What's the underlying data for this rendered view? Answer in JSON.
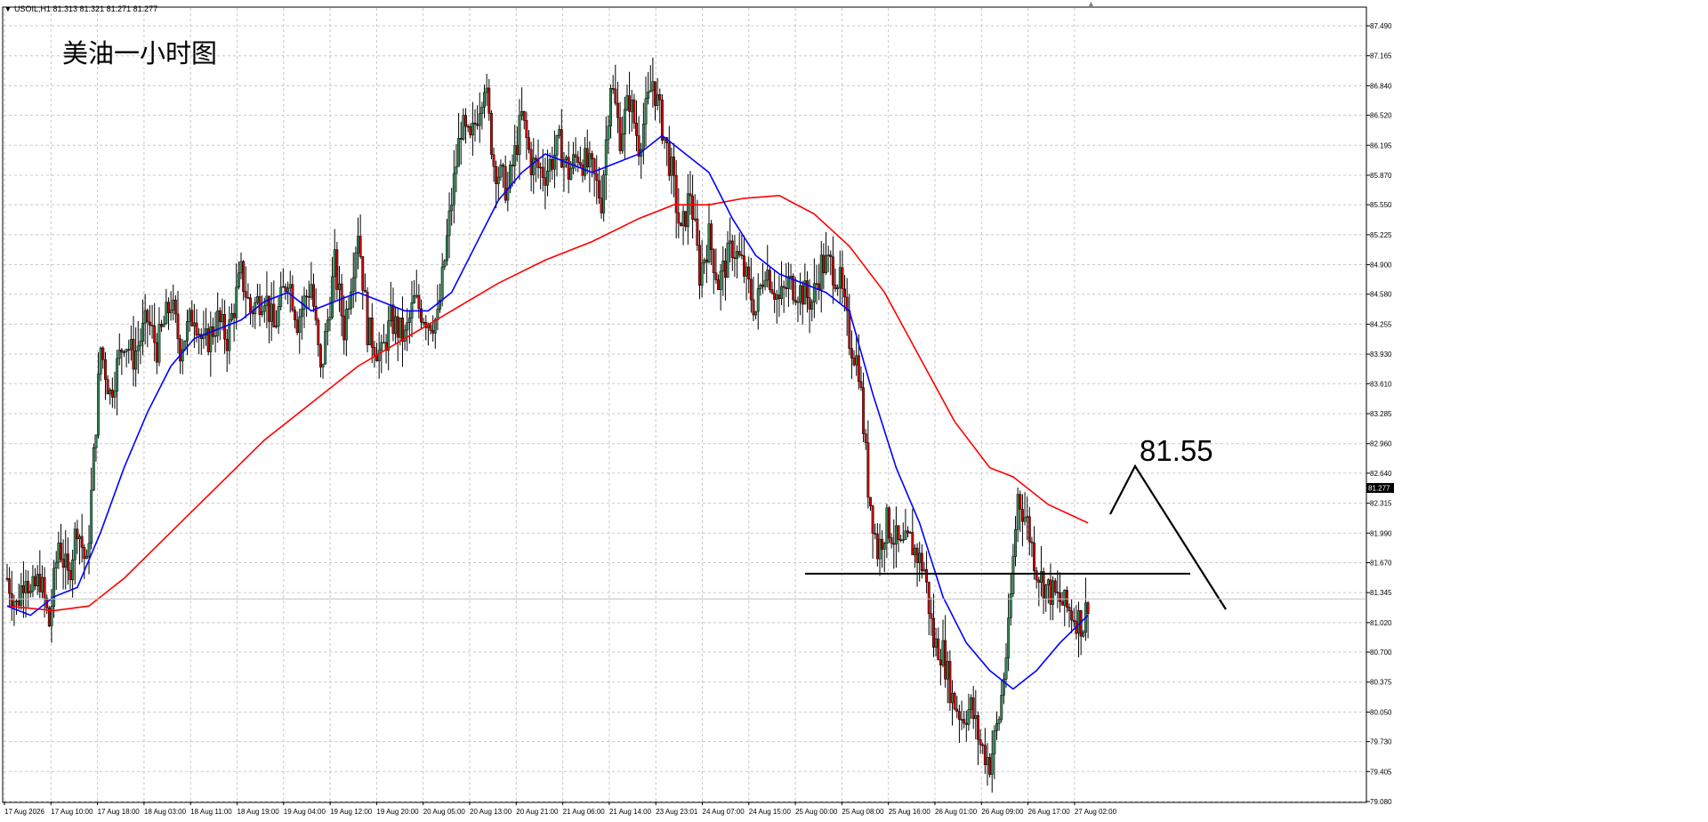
{
  "header": {
    "symbol_label": "USOIL,H1  81.313 81.321 81.271 81.277",
    "chart_title": "美油一小时图",
    "key_level_label": "81.55",
    "current_price_label": "81.277"
  },
  "colors": {
    "background": "#ffffff",
    "grid": "#c8c8c8",
    "bull_body": "#2e8b57",
    "bear_body": "#cc0000",
    "wick": "#000000",
    "ma_fast": "#0000ff",
    "ma_slow": "#ff0000",
    "annotation": "#000000"
  },
  "chart_data": {
    "type": "candlestick",
    "title": "美油一小时图",
    "symbol": "USOIL,H1",
    "ylim": [
      79.08,
      87.6
    ],
    "y_ticks": [
      "87.490",
      "87.165",
      "86.840",
      "86.520",
      "86.195",
      "85.870",
      "85.550",
      "85.225",
      "84.900",
      "84.580",
      "84.255",
      "83.930",
      "83.610",
      "83.285",
      "82.960",
      "82.640",
      "82.315",
      "81.990",
      "81.670",
      "81.345",
      "81.020",
      "80.700",
      "80.375",
      "80.050",
      "79.730",
      "79.405",
      "79.080"
    ],
    "x_ticks": [
      "17 Aug 2026",
      "17 Aug 10:00",
      "17 Aug 18:00",
      "18 Aug 03:00",
      "18 Aug 11:00",
      "18 Aug 19:00",
      "19 Aug 04:00",
      "19 Aug 12:00",
      "19 Aug 20:00",
      "20 Aug 05:00",
      "20 Aug 13:00",
      "20 Aug 21:00",
      "21 Aug 06:00",
      "21 Aug 14:00",
      "23 Aug 23:01",
      "24 Aug 07:00",
      "24 Aug 15:00",
      "25 Aug 00:00",
      "25 Aug 08:00",
      "25 Aug 16:00",
      "26 Aug 01:00",
      "26 Aug 09:00",
      "26 Aug 17:00",
      "27 Aug 02:00"
    ],
    "last_price": 81.277,
    "key_level": 81.55,
    "price_path": [
      [
        0,
        81.5
      ],
      [
        4,
        81.2
      ],
      [
        8,
        81.6
      ],
      [
        10,
        81.3
      ],
      [
        14,
        81.5
      ],
      [
        18,
        81.0
      ],
      [
        22,
        81.9
      ],
      [
        26,
        81.5
      ],
      [
        30,
        82.1
      ],
      [
        34,
        81.6
      ],
      [
        40,
        84.0
      ],
      [
        44,
        83.5
      ],
      [
        50,
        84.1
      ],
      [
        54,
        83.9
      ],
      [
        60,
        84.3
      ],
      [
        64,
        84.0
      ],
      [
        70,
        84.5
      ],
      [
        74,
        84.0
      ],
      [
        80,
        84.4
      ],
      [
        84,
        84.0
      ],
      [
        90,
        84.3
      ],
      [
        94,
        84.1
      ],
      [
        100,
        84.8
      ],
      [
        104,
        84.4
      ],
      [
        110,
        84.6
      ],
      [
        114,
        84.2
      ],
      [
        120,
        84.8
      ],
      [
        124,
        84.3
      ],
      [
        130,
        84.7
      ],
      [
        134,
        83.7
      ],
      [
        140,
        84.9
      ],
      [
        144,
        84.2
      ],
      [
        150,
        85.3
      ],
      [
        154,
        84.2
      ],
      [
        160,
        83.9
      ],
      [
        164,
        84.3
      ],
      [
        170,
        84.1
      ],
      [
        174,
        84.5
      ],
      [
        180,
        84.3
      ],
      [
        184,
        84.3
      ],
      [
        190,
        85.6
      ],
      [
        194,
        86.4
      ],
      [
        198,
        86.2
      ],
      [
        204,
        86.9
      ],
      [
        208,
        86.0
      ],
      [
        214,
        85.7
      ],
      [
        220,
        86.5
      ],
      [
        224,
        86.0
      ],
      [
        230,
        85.9
      ],
      [
        236,
        86.2
      ],
      [
        240,
        85.9
      ],
      [
        244,
        86.1
      ],
      [
        250,
        85.9
      ],
      [
        254,
        85.6
      ],
      [
        258,
        86.9
      ],
      [
        262,
        86.3
      ],
      [
        266,
        86.7
      ],
      [
        270,
        86.2
      ],
      [
        276,
        86.9
      ],
      [
        280,
        86.4
      ],
      [
        284,
        85.9
      ],
      [
        288,
        85.2
      ],
      [
        292,
        85.7
      ],
      [
        296,
        84.8
      ],
      [
        300,
        85.2
      ],
      [
        304,
        84.7
      ],
      [
        310,
        85.1
      ],
      [
        314,
        84.9
      ],
      [
        320,
        84.4
      ],
      [
        324,
        84.9
      ],
      [
        330,
        84.5
      ],
      [
        334,
        84.7
      ],
      [
        340,
        84.6
      ],
      [
        344,
        84.5
      ],
      [
        348,
        84.9
      ],
      [
        352,
        84.9
      ],
      [
        356,
        84.7
      ],
      [
        360,
        84.1
      ],
      [
        364,
        83.8
      ],
      [
        368,
        82.5
      ],
      [
        372,
        81.8
      ],
      [
        376,
        82.1
      ],
      [
        382,
        81.8
      ],
      [
        386,
        81.9
      ],
      [
        392,
        81.6
      ],
      [
        396,
        80.8
      ],
      [
        400,
        80.7
      ],
      [
        404,
        80.2
      ],
      [
        408,
        80.0
      ],
      [
        412,
        80.1
      ],
      [
        416,
        79.7
      ],
      [
        420,
        79.5
      ],
      [
        424,
        80.0
      ],
      [
        428,
        80.9
      ],
      [
        430,
        81.7
      ],
      [
        432,
        82.4
      ],
      [
        436,
        82.1
      ],
      [
        440,
        81.6
      ],
      [
        444,
        81.4
      ],
      [
        448,
        81.3
      ],
      [
        452,
        81.2
      ],
      [
        456,
        81.1
      ],
      [
        460,
        81.0
      ],
      [
        462,
        81.277
      ]
    ],
    "ma_fast": [
      [
        0,
        81.2
      ],
      [
        10,
        81.1
      ],
      [
        20,
        81.3
      ],
      [
        30,
        81.4
      ],
      [
        40,
        82.0
      ],
      [
        50,
        82.7
      ],
      [
        60,
        83.3
      ],
      [
        70,
        83.8
      ],
      [
        80,
        84.1
      ],
      [
        90,
        84.2
      ],
      [
        100,
        84.3
      ],
      [
        110,
        84.5
      ],
      [
        120,
        84.6
      ],
      [
        130,
        84.4
      ],
      [
        140,
        84.5
      ],
      [
        150,
        84.6
      ],
      [
        160,
        84.5
      ],
      [
        170,
        84.4
      ],
      [
        180,
        84.4
      ],
      [
        190,
        84.6
      ],
      [
        200,
        85.1
      ],
      [
        210,
        85.6
      ],
      [
        220,
        85.9
      ],
      [
        230,
        86.1
      ],
      [
        240,
        86.0
      ],
      [
        250,
        85.9
      ],
      [
        260,
        86.0
      ],
      [
        270,
        86.1
      ],
      [
        280,
        86.3
      ],
      [
        290,
        86.1
      ],
      [
        300,
        85.9
      ],
      [
        310,
        85.4
      ],
      [
        320,
        85.0
      ],
      [
        330,
        84.8
      ],
      [
        340,
        84.7
      ],
      [
        350,
        84.6
      ],
      [
        360,
        84.4
      ],
      [
        370,
        83.5
      ],
      [
        380,
        82.7
      ],
      [
        390,
        82.1
      ],
      [
        400,
        81.3
      ],
      [
        410,
        80.8
      ],
      [
        420,
        80.5
      ],
      [
        430,
        80.3
      ],
      [
        440,
        80.5
      ],
      [
        450,
        80.8
      ],
      [
        458,
        81.0
      ],
      [
        462,
        81.1
      ]
    ],
    "ma_slow": [
      [
        0,
        81.2
      ],
      [
        20,
        81.15
      ],
      [
        35,
        81.2
      ],
      [
        50,
        81.5
      ],
      [
        70,
        82.0
      ],
      [
        90,
        82.5
      ],
      [
        110,
        83.0
      ],
      [
        130,
        83.4
      ],
      [
        150,
        83.8
      ],
      [
        170,
        84.1
      ],
      [
        190,
        84.4
      ],
      [
        210,
        84.7
      ],
      [
        230,
        84.95
      ],
      [
        250,
        85.15
      ],
      [
        270,
        85.4
      ],
      [
        285,
        85.55
      ],
      [
        300,
        85.55
      ],
      [
        315,
        85.62
      ],
      [
        330,
        85.65
      ],
      [
        345,
        85.45
      ],
      [
        360,
        85.1
      ],
      [
        375,
        84.6
      ],
      [
        390,
        83.9
      ],
      [
        405,
        83.2
      ],
      [
        420,
        82.7
      ],
      [
        430,
        82.6
      ],
      [
        445,
        82.3
      ],
      [
        462,
        82.1
      ]
    ],
    "projection": {
      "level": 81.55,
      "path": [
        [
          1248,
          578
        ],
        [
          1276,
          524
        ],
        [
          1378,
          685
        ]
      ]
    }
  }
}
